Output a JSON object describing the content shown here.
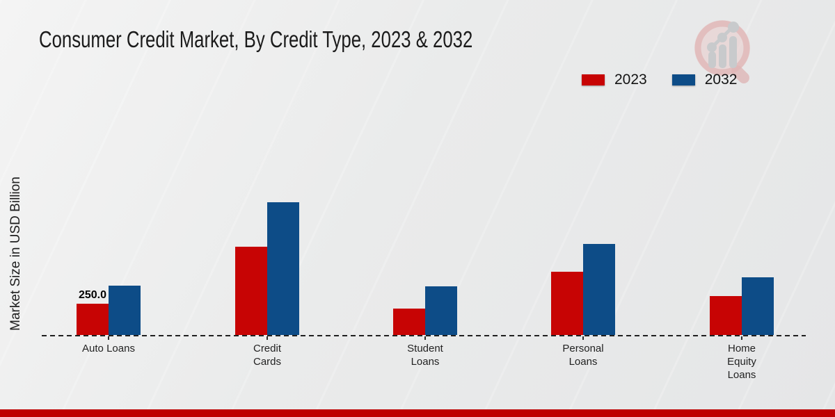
{
  "title": "Consumer Credit Market, By Credit Type, 2023 & 2032",
  "y_axis_label": "Market Size in USD Billion",
  "legend": [
    {
      "label": "2023",
      "color": "#c70404"
    },
    {
      "label": "2032",
      "color": "#0d4c87"
    }
  ],
  "colors": {
    "series_2023": "#c70404",
    "series_2032": "#0d4c87",
    "footer_bar": "#bf0101",
    "baseline": "#1f1f1f",
    "logo_pink": "#e3bcbc",
    "logo_gray": "#c7c9cb"
  },
  "branding": {
    "logo_icon": "magnifier-trend-chart-watermark"
  },
  "chart_data": {
    "type": "bar",
    "title": "Consumer Credit Market, By Credit Type, 2023 & 2032",
    "xlabel": "",
    "ylabel": "Market Size in USD Billion",
    "ylim": [
      0,
      1250
    ],
    "grid": false,
    "legend_position": "top-right",
    "baseline_style": "dashed",
    "categories": [
      "Auto Loans",
      "Credit Cards",
      "Student Loans",
      "Personal Loans",
      "Home Equity Loans"
    ],
    "category_label_lines": [
      [
        "Auto Loans"
      ],
      [
        "Credit",
        "Cards"
      ],
      [
        "Student",
        "Loans"
      ],
      [
        "Personal",
        "Loans"
      ],
      [
        "Home",
        "Equity",
        "Loans"
      ]
    ],
    "series": [
      {
        "name": "2023",
        "color": "#c70404",
        "values": [
          250,
          705,
          210,
          505,
          310
        ]
      },
      {
        "name": "2032",
        "color": "#0d4c87",
        "values": [
          395,
          1060,
          390,
          730,
          460
        ]
      }
    ],
    "data_labels": [
      {
        "series": "2023",
        "category": "Auto Loans",
        "text": "250.0"
      }
    ]
  }
}
